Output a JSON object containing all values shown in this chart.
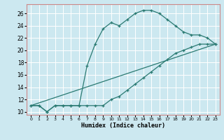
{
  "xlabel": "Humidex (Indice chaleur)",
  "bg_color": "#cce8f0",
  "grid_color": "#ffffff",
  "line_color": "#2a7a72",
  "xlim": [
    -0.5,
    23.5
  ],
  "ylim": [
    9.5,
    27.5
  ],
  "yticks": [
    10,
    12,
    14,
    16,
    18,
    20,
    22,
    24,
    26
  ],
  "xticks": [
    0,
    1,
    2,
    3,
    4,
    5,
    6,
    7,
    8,
    9,
    10,
    11,
    12,
    13,
    14,
    15,
    16,
    17,
    18,
    19,
    20,
    21,
    22,
    23
  ],
  "series1_x": [
    0,
    1,
    2,
    3,
    4,
    5,
    6,
    7,
    8,
    9,
    10,
    11,
    12,
    13,
    14,
    15,
    16,
    17,
    18,
    19,
    20,
    21,
    22,
    23
  ],
  "series1_y": [
    11,
    11,
    10,
    11,
    11,
    11,
    11,
    17.5,
    21,
    23.5,
    24.5,
    24,
    25,
    26,
    26.5,
    26.5,
    26,
    25,
    24,
    23,
    22.5,
    22.5,
    22,
    21
  ],
  "series2_x": [
    0,
    1,
    2,
    3,
    4,
    5,
    6,
    7,
    8,
    9,
    10,
    11,
    12,
    13,
    14,
    15,
    16,
    17,
    18,
    19,
    20,
    21,
    22,
    23
  ],
  "series2_y": [
    11,
    11,
    10,
    11,
    11,
    11,
    11,
    11,
    11,
    11,
    12,
    12.5,
    13.5,
    14.5,
    15.5,
    16.5,
    17.5,
    18.5,
    19.5,
    20,
    20.5,
    21,
    21,
    21
  ],
  "series3_x": [
    0,
    23
  ],
  "series3_y": [
    11,
    21
  ]
}
